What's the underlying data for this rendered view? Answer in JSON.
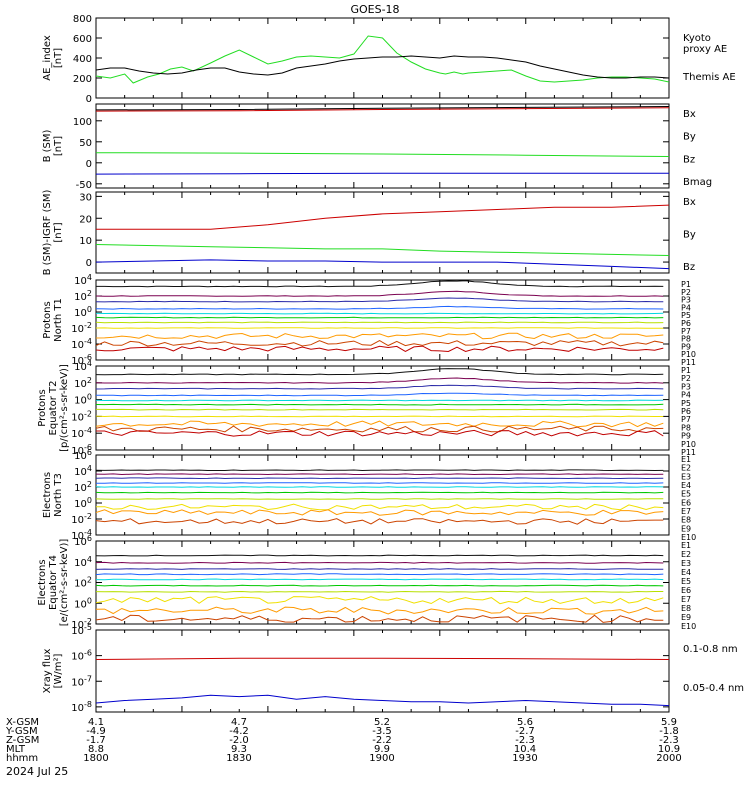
{
  "title": "GOES-18",
  "date": "2024 Jul 25",
  "colors": {
    "black": "#000000",
    "green": "#22dd22",
    "red": "#cc0000",
    "blue": "#0000cc",
    "ch": [
      "#111111",
      "#7a0050",
      "#2a2aa8",
      "#1e64ff",
      "#00d8e0",
      "#00c800",
      "#b8e000",
      "#f0e000",
      "#ff9a00",
      "#cc4400",
      "#c00000"
    ]
  },
  "footer": {
    "rows": [
      {
        "label": "X-GSM",
        "values": [
          "4.1",
          "4.7",
          "5.2",
          "5.6",
          "5.9"
        ]
      },
      {
        "label": "Y-GSM",
        "values": [
          "-4.9",
          "-4.2",
          "-3.5",
          "-2.7",
          "-1.8"
        ]
      },
      {
        "label": "Z-GSM",
        "values": [
          "-1.7",
          "-2.0",
          "-2.2",
          "-2.3",
          "-2.3"
        ]
      },
      {
        "label": "MLT",
        "values": [
          "8.8",
          "9.3",
          "9.9",
          "10.4",
          "10.9"
        ]
      },
      {
        "label": "hhmm",
        "values": [
          "1800",
          "1830",
          "1900",
          "1930",
          "2000"
        ]
      }
    ]
  },
  "chart_data": [
    {
      "type": "line",
      "ylabel": "AE_index\n[nT]",
      "ylim": [
        0,
        800
      ],
      "yticks": [
        "0",
        "200",
        "400",
        "600",
        "800"
      ],
      "xlim": [
        1800,
        2000
      ],
      "series": [
        {
          "name": "Kyoto\nproxy AE",
          "color": "green",
          "x": [
            1800,
            1805,
            1810,
            1813,
            1818,
            1822,
            1826,
            1830,
            1834,
            1840,
            1845,
            1850,
            1855,
            1860,
            1865,
            1870,
            1875,
            1880,
            1885,
            1890,
            1895,
            1900,
            1905,
            1910,
            1915,
            1920,
            1922,
            1925,
            1928,
            1930,
            1935,
            1940,
            1945,
            1950,
            1955,
            1960,
            1965,
            1970,
            1975,
            1980,
            1985,
            1990,
            1995,
            2000
          ],
          "y": [
            220,
            200,
            240,
            150,
            210,
            240,
            290,
            310,
            270,
            350,
            420,
            480,
            410,
            340,
            370,
            410,
            420,
            410,
            400,
            440,
            620,
            600,
            450,
            360,
            290,
            250,
            240,
            260,
            240,
            250,
            260,
            270,
            280,
            220,
            170,
            160,
            170,
            180,
            200,
            210,
            210,
            200,
            190,
            160
          ]
        },
        {
          "name": "Themis AE",
          "color": "black",
          "x": [
            1800,
            1805,
            1810,
            1815,
            1820,
            1825,
            1830,
            1835,
            1840,
            1845,
            1850,
            1855,
            1860,
            1865,
            1870,
            1875,
            1880,
            1885,
            1890,
            1895,
            1900,
            1905,
            1910,
            1915,
            1920,
            1925,
            1930,
            1935,
            1940,
            1945,
            1950,
            1955,
            1960,
            1965,
            1970,
            1975,
            1980,
            1985,
            1990,
            1995,
            2000
          ],
          "y": [
            280,
            300,
            300,
            270,
            250,
            240,
            250,
            280,
            300,
            300,
            260,
            240,
            230,
            250,
            300,
            320,
            340,
            370,
            390,
            400,
            410,
            410,
            420,
            410,
            400,
            420,
            410,
            410,
            400,
            380,
            360,
            320,
            290,
            260,
            230,
            210,
            200,
            200,
            210,
            210,
            200
          ]
        }
      ]
    },
    {
      "type": "line",
      "ylabel": "B (SM)\n[nT]",
      "ylim": [
        -60,
        140
      ],
      "yticks": [
        "-50",
        "0",
        "50",
        "100"
      ],
      "xlim": [
        1800,
        2000
      ],
      "series": [
        {
          "name": "Bx",
          "color": "blue",
          "x": [
            1800,
            1850,
            1900,
            1950,
            2000
          ],
          "y": [
            -27,
            -26,
            -25,
            -25,
            -25
          ]
        },
        {
          "name": "By",
          "color": "green",
          "x": [
            1800,
            1850,
            1900,
            1950,
            2000
          ],
          "y": [
            24,
            23,
            21,
            18,
            15
          ]
        },
        {
          "name": "Bz",
          "color": "red",
          "x": [
            1800,
            1850,
            1900,
            1950,
            2000
          ],
          "y": [
            123,
            124,
            127,
            129,
            131
          ]
        },
        {
          "name": "Bmag",
          "color": "black",
          "x": [
            1800,
            1850,
            1900,
            1950,
            2000
          ],
          "y": [
            126,
            127,
            130,
            132,
            134
          ]
        }
      ]
    },
    {
      "type": "line",
      "ylabel": "B (SM)-IGRF (SM)\n[nT]",
      "ylim": [
        -5,
        32
      ],
      "yticks": [
        "-10",
        "0",
        "10",
        "20",
        "30"
      ],
      "xlim": [
        1800,
        2000
      ],
      "series": [
        {
          "name": "Bx",
          "color": "blue",
          "x": [
            1800,
            1820,
            1840,
            1860,
            1880,
            1900,
            1920,
            1940,
            1960,
            1980,
            2000
          ],
          "y": [
            0,
            0.5,
            1,
            0.5,
            0.5,
            0,
            0,
            0,
            -1,
            -2,
            -3
          ]
        },
        {
          "name": "By",
          "color": "green",
          "x": [
            1800,
            1820,
            1840,
            1860,
            1880,
            1900,
            1920,
            1940,
            1960,
            1980,
            2000
          ],
          "y": [
            8,
            7.5,
            7,
            6.5,
            6,
            6,
            5,
            4.5,
            4,
            3.5,
            3
          ]
        },
        {
          "name": "Bz",
          "color": "red",
          "x": [
            1800,
            1820,
            1840,
            1860,
            1880,
            1900,
            1920,
            1940,
            1960,
            1980,
            2000
          ],
          "y": [
            15,
            15,
            15,
            17,
            20,
            22,
            23,
            24,
            25,
            25,
            26
          ]
        }
      ]
    },
    {
      "type": "line",
      "scale": "log",
      "ylabel": "Protons\nNorth T1",
      "ylim": [
        -6,
        4
      ],
      "yticks": [
        "10^4",
        "10^2",
        "10^0",
        "10^-2",
        "10^-4",
        "10^-6"
      ],
      "xlim": [
        1800,
        2000
      ],
      "channels": [
        "P1",
        "P2",
        "P3",
        "P4",
        "P5",
        "P6",
        "P7",
        "P8",
        "P9",
        "P10",
        "P11"
      ],
      "levels": [
        3.2,
        2.0,
        1.3,
        0.4,
        -0.2,
        -0.7,
        -1.3,
        -2.0,
        -3.0,
        -3.9,
        -4.6
      ]
    },
    {
      "type": "line",
      "scale": "log",
      "ylabel": "Protons\nEquator T2\n[p/(cm²-s-sr-keV)]",
      "ylim": [
        -6,
        4
      ],
      "yticks": [
        "10^4",
        "10^2",
        "10^0",
        "10^-2",
        "10^-4",
        "10^-6"
      ],
      "xlim": [
        1800,
        2000
      ],
      "channels": [
        "P1",
        "P2",
        "P3",
        "P4",
        "P5",
        "P6",
        "P7",
        "P8",
        "P9",
        "P10",
        "P11"
      ],
      "levels": [
        3.0,
        2.0,
        1.3,
        0.5,
        -0.1,
        -0.6,
        -1.2,
        -2.0,
        -2.9,
        -3.5,
        -4.0
      ]
    },
    {
      "type": "line",
      "scale": "log",
      "ylabel": "Electrons\nNorth T3",
      "ylim": [
        -4,
        6
      ],
      "yticks": [
        "10^6",
        "10^4",
        "10^2",
        "10^0",
        "10^-2",
        "10^-4"
      ],
      "xlim": [
        1800,
        2000
      ],
      "channels": [
        "E1",
        "E2",
        "E3",
        "E4",
        "E5",
        "E6",
        "E7",
        "E8",
        "E9",
        "E10"
      ],
      "levels": [
        4.1,
        3.6,
        3.1,
        2.5,
        2.0,
        1.3,
        0.5,
        -0.5,
        -1.2,
        -2.3
      ]
    },
    {
      "type": "line",
      "scale": "log",
      "ylabel": "Electrons\nEquator T4\n[e/(cm²-s-sr-keV)]",
      "ylim": [
        -2,
        6
      ],
      "yticks": [
        "10^6",
        "10^4",
        "10^2",
        "10^0",
        "10^-2"
      ],
      "xlim": [
        1800,
        2000
      ],
      "channels": [
        "E1",
        "E2",
        "E3",
        "E4",
        "E5",
        "E6",
        "E7",
        "E8",
        "E9",
        "E10"
      ],
      "levels": [
        4.6,
        3.9,
        3.3,
        2.8,
        2.3,
        1.7,
        1.1,
        0.3,
        -0.7,
        -1.5
      ]
    },
    {
      "type": "line",
      "scale": "log",
      "ylabel": "Xray flux\n[W/m²]",
      "ylim": [
        -8.2,
        -5
      ],
      "yticks": [
        "10^-5",
        "10^-6",
        "10^-7",
        "10^-8"
      ],
      "xlim": [
        1800,
        2000
      ],
      "series": [
        {
          "name": "0.1-0.8 nm",
          "color": "red",
          "x": [
            1800,
            1850,
            1900,
            1950,
            2000
          ],
          "y": [
            -6.15,
            -6.1,
            -6.1,
            -6.12,
            -6.15
          ]
        },
        {
          "name": "0.05-0.4 nm",
          "color": "blue",
          "x": [
            1800,
            1810,
            1820,
            1830,
            1840,
            1850,
            1860,
            1870,
            1880,
            1890,
            1900,
            1910,
            1920,
            1930,
            1940,
            1950,
            1960,
            1970,
            1980,
            1990,
            2000
          ],
          "y": [
            -7.85,
            -7.75,
            -7.7,
            -7.65,
            -7.55,
            -7.6,
            -7.55,
            -7.7,
            -7.6,
            -7.7,
            -7.75,
            -7.8,
            -7.8,
            -7.85,
            -7.8,
            -7.75,
            -7.8,
            -7.85,
            -7.9,
            -7.9,
            -7.95
          ]
        }
      ]
    }
  ]
}
